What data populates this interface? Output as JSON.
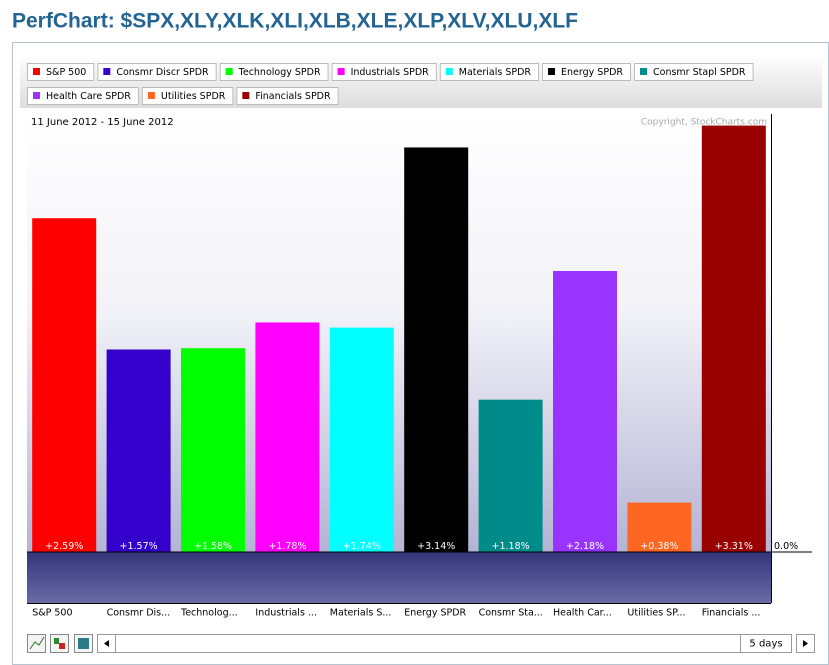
{
  "chart_data": {
    "type": "bar",
    "title": "PerfChart: $SPX,XLY,XLK,XLI,XLB,XLE,XLP,XLV,XLU,XLF",
    "date_range": "11 June 2012 - 15 June 2012",
    "copyright": "Copyright, StockCharts.com",
    "period": "5 days",
    "legend": [
      "S&P 500",
      "Consmr Discr SPDR",
      "Technology SPDR",
      "Industrials SPDR",
      "Materials SPDR",
      "Energy SPDR",
      "Consmr Stapl SPDR",
      "Health Care SPDR",
      "Utilities SPDR",
      "Financials SPDR"
    ],
    "categories": [
      "S&P 500",
      "Consmr Dis...",
      "Technolog...",
      "Industrials ...",
      "Materials S...",
      "Energy SPDR",
      "Consmr Sta...",
      "Health Car...",
      "Utilities SP...",
      "Financials ..."
    ],
    "values": [
      2.59,
      1.57,
      1.58,
      1.78,
      1.74,
      3.14,
      1.18,
      2.18,
      0.38,
      3.31
    ],
    "value_labels": [
      "+2.59%",
      "+1.57%",
      "+1.58%",
      "+1.78%",
      "+1.74%",
      "+3.14%",
      "+1.18%",
      "+2.18%",
      "+0.38%",
      "+3.31%"
    ],
    "colors": [
      "#ff0000",
      "#3300cc",
      "#00ff00",
      "#ff00ff",
      "#00ffff",
      "#000000",
      "#008b8b",
      "#9933ff",
      "#ff6622",
      "#990000"
    ],
    "ylim": [
      -0.4,
      3.4
    ],
    "yticks": [
      {
        "value": 0,
        "label": "0.0%"
      }
    ]
  }
}
